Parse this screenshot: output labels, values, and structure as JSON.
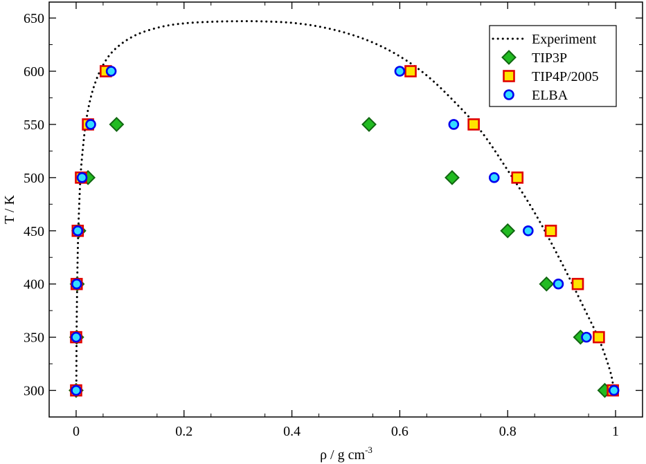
{
  "chart_data": {
    "type": "scatter",
    "xlabel_main": "ρ / g cm",
    "xlabel_sup": "-3",
    "ylabel": "T / K",
    "xlim": [
      -0.05,
      1.05
    ],
    "ylim": [
      275,
      665
    ],
    "x_ticks": [
      0,
      0.2,
      0.4,
      0.6,
      0.8,
      1
    ],
    "x_tick_labels": [
      "0",
      "0.2",
      "0.4",
      "0.6",
      "0.8",
      "1"
    ],
    "y_ticks": [
      300,
      350,
      400,
      450,
      500,
      550,
      600,
      650
    ],
    "y_tick_labels": [
      "300",
      "350",
      "400",
      "450",
      "500",
      "550",
      "600",
      "650"
    ],
    "legend_position": "top-right",
    "curve": {
      "name": "Experiment",
      "style": "dotted",
      "color": "#000000",
      "x": [
        0.0003,
        0.0008,
        0.002,
        0.004,
        0.008,
        0.013,
        0.019,
        0.027,
        0.036,
        0.048,
        0.065,
        0.09,
        0.12,
        0.16,
        0.2,
        0.25,
        0.3,
        0.35,
        0.4,
        0.45,
        0.5,
        0.55,
        0.6,
        0.65,
        0.7,
        0.75,
        0.8,
        0.85,
        0.9,
        0.94,
        0.97,
        0.99,
        0.997
      ],
      "y": [
        300,
        350,
        400,
        450,
        500,
        530,
        555,
        575,
        590,
        604,
        617,
        628,
        636,
        642,
        645,
        646.5,
        647,
        646.8,
        645.5,
        642,
        636,
        627,
        614,
        596,
        572,
        544,
        507,
        467,
        420,
        379,
        347,
        318,
        300
      ]
    },
    "series": [
      {
        "name": "TIP3P",
        "marker": "diamond",
        "fill": "#22bb22",
        "stroke": "#116611",
        "points": [
          [
            0.0,
            300
          ],
          [
            0.001,
            350
          ],
          [
            0.002,
            400
          ],
          [
            0.005,
            450
          ],
          [
            0.022,
            500
          ],
          [
            0.075,
            550
          ],
          [
            0.98,
            300
          ],
          [
            0.935,
            350
          ],
          [
            0.872,
            400
          ],
          [
            0.8,
            450
          ],
          [
            0.697,
            500
          ],
          [
            0.543,
            550
          ]
        ]
      },
      {
        "name": "TIP4P/2005",
        "marker": "square",
        "fill": "#ffe400",
        "stroke": "#e00000",
        "points": [
          [
            0.0,
            300
          ],
          [
            0.0,
            350
          ],
          [
            0.001,
            400
          ],
          [
            0.003,
            450
          ],
          [
            0.009,
            500
          ],
          [
            0.022,
            550
          ],
          [
            0.055,
            600
          ],
          [
            0.995,
            300
          ],
          [
            0.969,
            350
          ],
          [
            0.93,
            400
          ],
          [
            0.88,
            450
          ],
          [
            0.818,
            500
          ],
          [
            0.737,
            550
          ],
          [
            0.62,
            600
          ]
        ]
      },
      {
        "name": "ELBA",
        "marker": "circle",
        "fill": "#33ddff",
        "stroke": "#0000ee",
        "points": [
          [
            0.0,
            300
          ],
          [
            0.0,
            350
          ],
          [
            0.001,
            400
          ],
          [
            0.003,
            450
          ],
          [
            0.011,
            500
          ],
          [
            0.027,
            550
          ],
          [
            0.065,
            600
          ],
          [
            0.997,
            300
          ],
          [
            0.946,
            350
          ],
          [
            0.894,
            400
          ],
          [
            0.838,
            450
          ],
          [
            0.775,
            500
          ],
          [
            0.7,
            550
          ],
          [
            0.6,
            600
          ]
        ]
      }
    ]
  }
}
